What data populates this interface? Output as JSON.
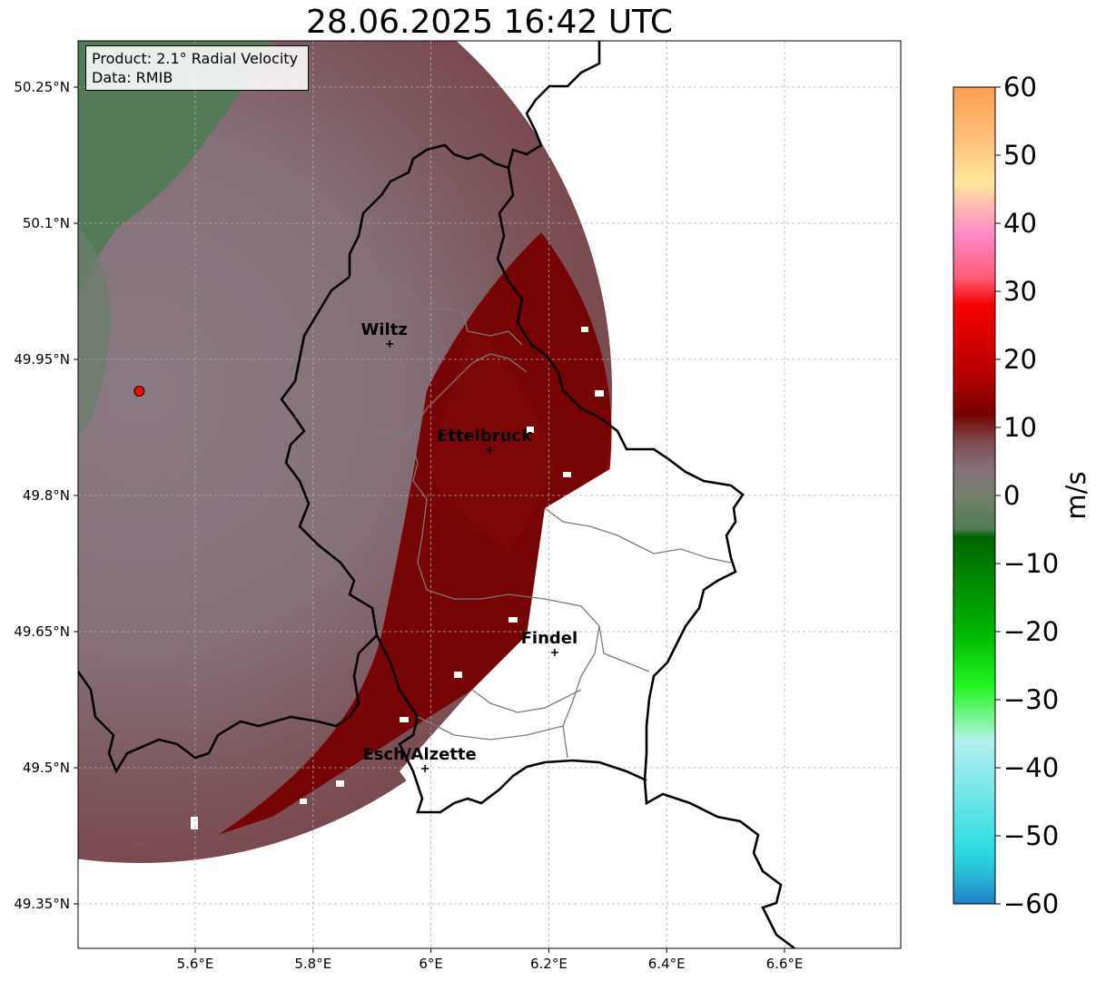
{
  "title": "28.06.2025 16:42 UTC",
  "info_box": {
    "product": "Product: 2.1° Radial Velocity",
    "data": "Data: RMIB"
  },
  "map": {
    "lon_ticks": [
      "5.6°E",
      "5.8°E",
      "6°E",
      "6.2°E",
      "6.4°E",
      "6.6°E"
    ],
    "lat_ticks": [
      "50.25°N",
      "50.1°N",
      "49.95°N",
      "49.8°N",
      "49.65°N",
      "49.5°N",
      "49.35°N"
    ],
    "cities": [
      {
        "name": "Wiltz",
        "lon": 5.93,
        "lat": 49.967
      },
      {
        "name": "Ettelbruck",
        "lon": 6.1,
        "lat": 49.85
      },
      {
        "name": "Findel",
        "lon": 6.21,
        "lat": 49.627
      },
      {
        "name": "Esch/Alzette",
        "lon": 5.99,
        "lat": 49.499
      }
    ],
    "radar_site": {
      "lon": 5.505,
      "lat": 49.915
    }
  },
  "colorbar": {
    "unit": "m/s",
    "ticks": [
      "60",
      "50",
      "40",
      "30",
      "20",
      "10",
      "0",
      "−10",
      "−20",
      "−30",
      "−40",
      "−50",
      "−60"
    ],
    "stops": [
      {
        "value": 60,
        "color": "#ff9e50"
      },
      {
        "value": 52,
        "color": "#ffc27f"
      },
      {
        "value": 46,
        "color": "#ffe89c"
      },
      {
        "value": 42,
        "color": "#ffb3b3"
      },
      {
        "value": 38,
        "color": "#ff86c6"
      },
      {
        "value": 32,
        "color": "#ff5c74"
      },
      {
        "value": 28,
        "color": "#f50000"
      },
      {
        "value": 18,
        "color": "#b80000"
      },
      {
        "value": 12,
        "color": "#770000"
      },
      {
        "value": 8,
        "color": "#7d4a4f"
      },
      {
        "value": 4,
        "color": "#86707a"
      },
      {
        "value": 0,
        "color": "#74806e"
      },
      {
        "value": -5,
        "color": "#4f7a52"
      },
      {
        "value": -6,
        "color": "#006400"
      },
      {
        "value": -20,
        "color": "#00b400"
      },
      {
        "value": -28,
        "color": "#22f522"
      },
      {
        "value": -34,
        "color": "#8ff5b0"
      },
      {
        "value": -36,
        "color": "#b5eff0"
      },
      {
        "value": -52,
        "color": "#2ddde0"
      },
      {
        "value": -56,
        "color": "#29b5d4"
      },
      {
        "value": -60,
        "color": "#2080c8"
      }
    ]
  }
}
